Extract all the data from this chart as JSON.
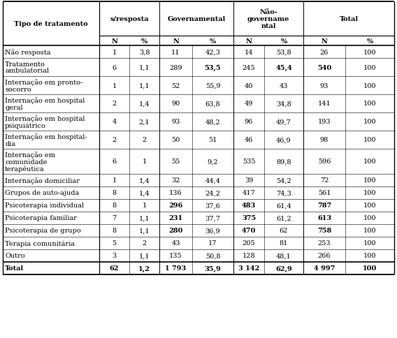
{
  "rows": [
    [
      "Não resposta",
      "1",
      "3,8",
      "11",
      "42,3",
      "14",
      "53,8",
      "26",
      "100"
    ],
    [
      "Tratamento\nambulatorial",
      "6",
      "1,1",
      "289",
      "53,5",
      "245",
      "45,4",
      "540",
      "100"
    ],
    [
      "Internação em pronto-\nsocorro",
      "1",
      "1,1",
      "52",
      "55,9",
      "40",
      "43",
      "93",
      "100"
    ],
    [
      "Internação em hospital\ngeral",
      "2",
      "1,4",
      "90",
      "63,8",
      "49",
      "34,8",
      "141",
      "100"
    ],
    [
      "Internação em hospital\npsiquiátrico",
      "4",
      "2,1",
      "93",
      "48,2",
      "96",
      "49,7",
      "193",
      "100"
    ],
    [
      "Internação em hospital-\ndia",
      "2",
      "2",
      "50",
      "51",
      "46",
      "46,9",
      "98",
      "100"
    ],
    [
      "Internação em\ncomunidade\nterapêutica",
      "6",
      "1",
      "55",
      "9,2",
      "535",
      "89,8",
      "596",
      "100"
    ],
    [
      "Internação domiciliar",
      "1",
      "1,4",
      "32",
      "44,4",
      "39",
      "54,2",
      "72",
      "100"
    ],
    [
      "Grupos de auto-ajuda",
      "8",
      "1,4",
      "136",
      "24,2",
      "417",
      "74,3",
      "561",
      "100"
    ],
    [
      "Psicoterapia individual",
      "8",
      "1",
      "296",
      "37,6",
      "483",
      "61,4",
      "787",
      "100"
    ],
    [
      "Psicoterapia familiar",
      "7",
      "1,1",
      "231",
      "37,7",
      "375",
      "61,2",
      "613",
      "100"
    ],
    [
      "Psicoterapia de grupo",
      "8",
      "1,1",
      "280",
      "36,9",
      "470",
      "62",
      "758",
      "100"
    ],
    [
      "Terapia comunitária",
      "5",
      "2",
      "43",
      "17",
      "205",
      "81",
      "253",
      "100"
    ],
    [
      "Outro",
      "3",
      "1,1",
      "135",
      "50,8",
      "128",
      "48,1",
      "266",
      "100"
    ],
    [
      "Total",
      "62",
      "1,2",
      "1 793",
      "35,9",
      "3 142",
      "62,9",
      "4 997",
      "100"
    ]
  ],
  "bold_map": {
    "1": [
      4,
      6,
      7
    ],
    "9": [
      3,
      5,
      7
    ],
    "10": [
      3,
      5,
      7
    ],
    "11": [
      3,
      5,
      7
    ],
    "14": [
      0,
      1,
      2,
      3,
      4,
      5,
      6,
      7,
      8
    ]
  },
  "background_color": "#ffffff",
  "fontsize": 7.0
}
